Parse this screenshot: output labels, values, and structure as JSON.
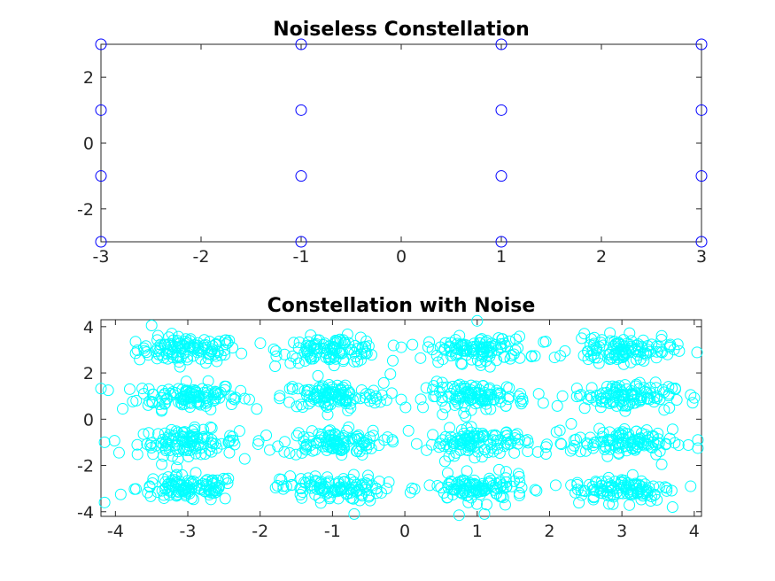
{
  "chart_data": [
    {
      "type": "scatter",
      "title": "Noiseless Constellation",
      "xlabel": "",
      "ylabel": "",
      "xlim": [
        -3,
        3
      ],
      "ylim": [
        -3,
        3
      ],
      "xticks": [
        -3,
        -2,
        -1,
        0,
        1,
        2,
        3
      ],
      "yticks": [
        -2,
        0,
        2
      ],
      "grid": false,
      "marker": "circle",
      "color": "#0000ff",
      "series": [
        {
          "points": [
            [
              -3,
              3
            ],
            [
              -3,
              1
            ],
            [
              -3,
              -1
            ],
            [
              -3,
              -3
            ],
            [
              -1,
              3
            ],
            [
              -1,
              1
            ],
            [
              -1,
              -1
            ],
            [
              -1,
              -3
            ],
            [
              1,
              3
            ],
            [
              1,
              1
            ],
            [
              1,
              -1
            ],
            [
              1,
              -3
            ],
            [
              3,
              3
            ],
            [
              3,
              1
            ],
            [
              3,
              -1
            ],
            [
              3,
              -3
            ]
          ]
        }
      ]
    },
    {
      "type": "scatter",
      "title": "Constellation with Noise",
      "xlabel": "",
      "ylabel": "",
      "xlim": [
        -4.2,
        4.1
      ],
      "ylim": [
        -4.2,
        4.3
      ],
      "xticks": [
        -4,
        -3,
        -2,
        -1,
        0,
        1,
        2,
        3,
        4
      ],
      "yticks": [
        -4,
        -2,
        0,
        2,
        4
      ],
      "grid": false,
      "marker": "circle",
      "color": "#00ffff",
      "series": [
        {
          "clusters": {
            "centers_x": [
              -3,
              -1,
              1,
              3
            ],
            "centers_y": [
              3,
              1,
              -1,
              -3
            ],
            "spread_x": 0.35,
            "spread_y": 0.28,
            "points_per_cluster": 110
          },
          "outliers": [
            [
              -4.1,
              1.25
            ],
            [
              -4.15,
              -1.0
            ],
            [
              -3.95,
              -1.45
            ],
            [
              -4.15,
              -3.6
            ],
            [
              -3.9,
              0.45
            ],
            [
              -2.35,
              0.85
            ],
            [
              -2.15,
              0.85
            ],
            [
              -2.45,
              3.3
            ],
            [
              -0.2,
              1.95
            ],
            [
              -0.05,
              0.85
            ],
            [
              0.05,
              -0.5
            ],
            [
              -0.25,
              -3.0
            ],
            [
              1.0,
              4.25
            ],
            [
              1.85,
              1.1
            ],
            [
              1.95,
              -1.5
            ],
            [
              1.8,
              -3.05
            ],
            [
              3.55,
              3.6
            ],
            [
              3.95,
              1.05
            ],
            [
              4.05,
              -0.9
            ],
            [
              4.05,
              -1.25
            ],
            [
              3.7,
              -3.8
            ],
            [
              3.95,
              -2.9
            ],
            [
              0.75,
              -4.15
            ],
            [
              1.1,
              -4.1
            ],
            [
              -0.7,
              -4.1
            ],
            [
              -3.5,
              4.05
            ],
            [
              3.55,
              -1.95
            ],
            [
              2.3,
              -0.2
            ]
          ]
        }
      ]
    }
  ]
}
